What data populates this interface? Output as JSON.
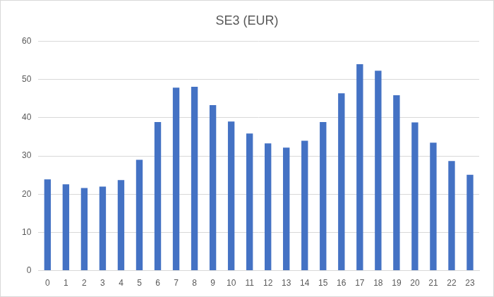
{
  "chart_data": {
    "type": "bar",
    "title": "SE3 (EUR)",
    "categories": [
      "0",
      "1",
      "2",
      "3",
      "4",
      "5",
      "6",
      "7",
      "8",
      "9",
      "10",
      "11",
      "12",
      "13",
      "14",
      "15",
      "16",
      "17",
      "18",
      "19",
      "20",
      "21",
      "22",
      "23"
    ],
    "values": [
      23.9,
      22.6,
      21.6,
      22.0,
      23.7,
      29.0,
      38.9,
      47.9,
      48.1,
      43.3,
      39.0,
      35.9,
      33.3,
      32.2,
      34.0,
      38.9,
      46.4,
      54.0,
      52.3,
      45.9,
      38.8,
      33.5,
      28.7,
      25.1
    ],
    "color": "#4472c4",
    "ylim": [
      0,
      60
    ],
    "yticks": [
      0,
      10,
      20,
      30,
      40,
      50,
      60
    ],
    "grid": true
  }
}
